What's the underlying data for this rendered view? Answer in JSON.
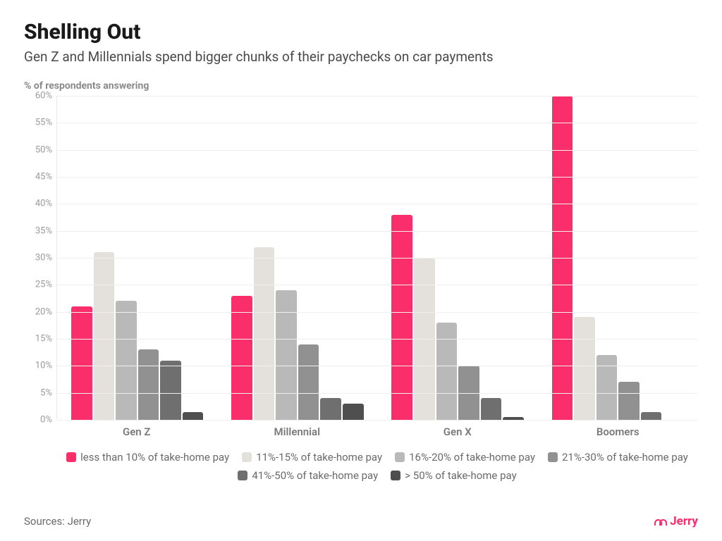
{
  "title": "Shelling Out",
  "subtitle": "Gen Z and Millennials spend bigger chunks of their paychecks on car payments",
  "ylabel": "% of respondents answering",
  "chart": {
    "type": "grouped-bar",
    "ymax": 60,
    "ytick_step": 5,
    "grid_color": "#efefef",
    "background_color": "#ffffff",
    "categories": [
      "Gen Z",
      "Millennial",
      "Gen X",
      "Boomers"
    ],
    "series": [
      {
        "label": "less than 10% of take-home pay",
        "color": "#f92e6a"
      },
      {
        "label": "11%-15% of take-home pay",
        "color": "#e4e1dc"
      },
      {
        "label": "16%-20% of take-home pay",
        "color": "#b9b9b9"
      },
      {
        "label": "21%-30% of take-home pay",
        "color": "#919191"
      },
      {
        "label": "41%-50% of take-home pay",
        "color": "#6f6f6f"
      },
      {
        "label": "> 50% of take-home pay",
        "color": "#4f4f4f"
      }
    ],
    "values": [
      [
        21,
        31,
        22,
        13,
        11,
        1.5
      ],
      [
        23,
        32,
        24,
        14,
        4,
        3
      ],
      [
        38,
        30,
        18,
        10,
        4,
        0.5
      ],
      [
        60,
        19,
        12,
        7,
        1.5,
        0
      ]
    ],
    "title_fontsize": 30,
    "subtitle_fontsize": 19,
    "ylabel_fontsize": 14,
    "tick_fontsize": 13,
    "xtick_fontsize": 15,
    "legend_fontsize": 15,
    "bar_border_radius": 3
  },
  "source_label": "Sources: Jerry",
  "brand": "Jerry",
  "brand_color": "#f92e6a"
}
